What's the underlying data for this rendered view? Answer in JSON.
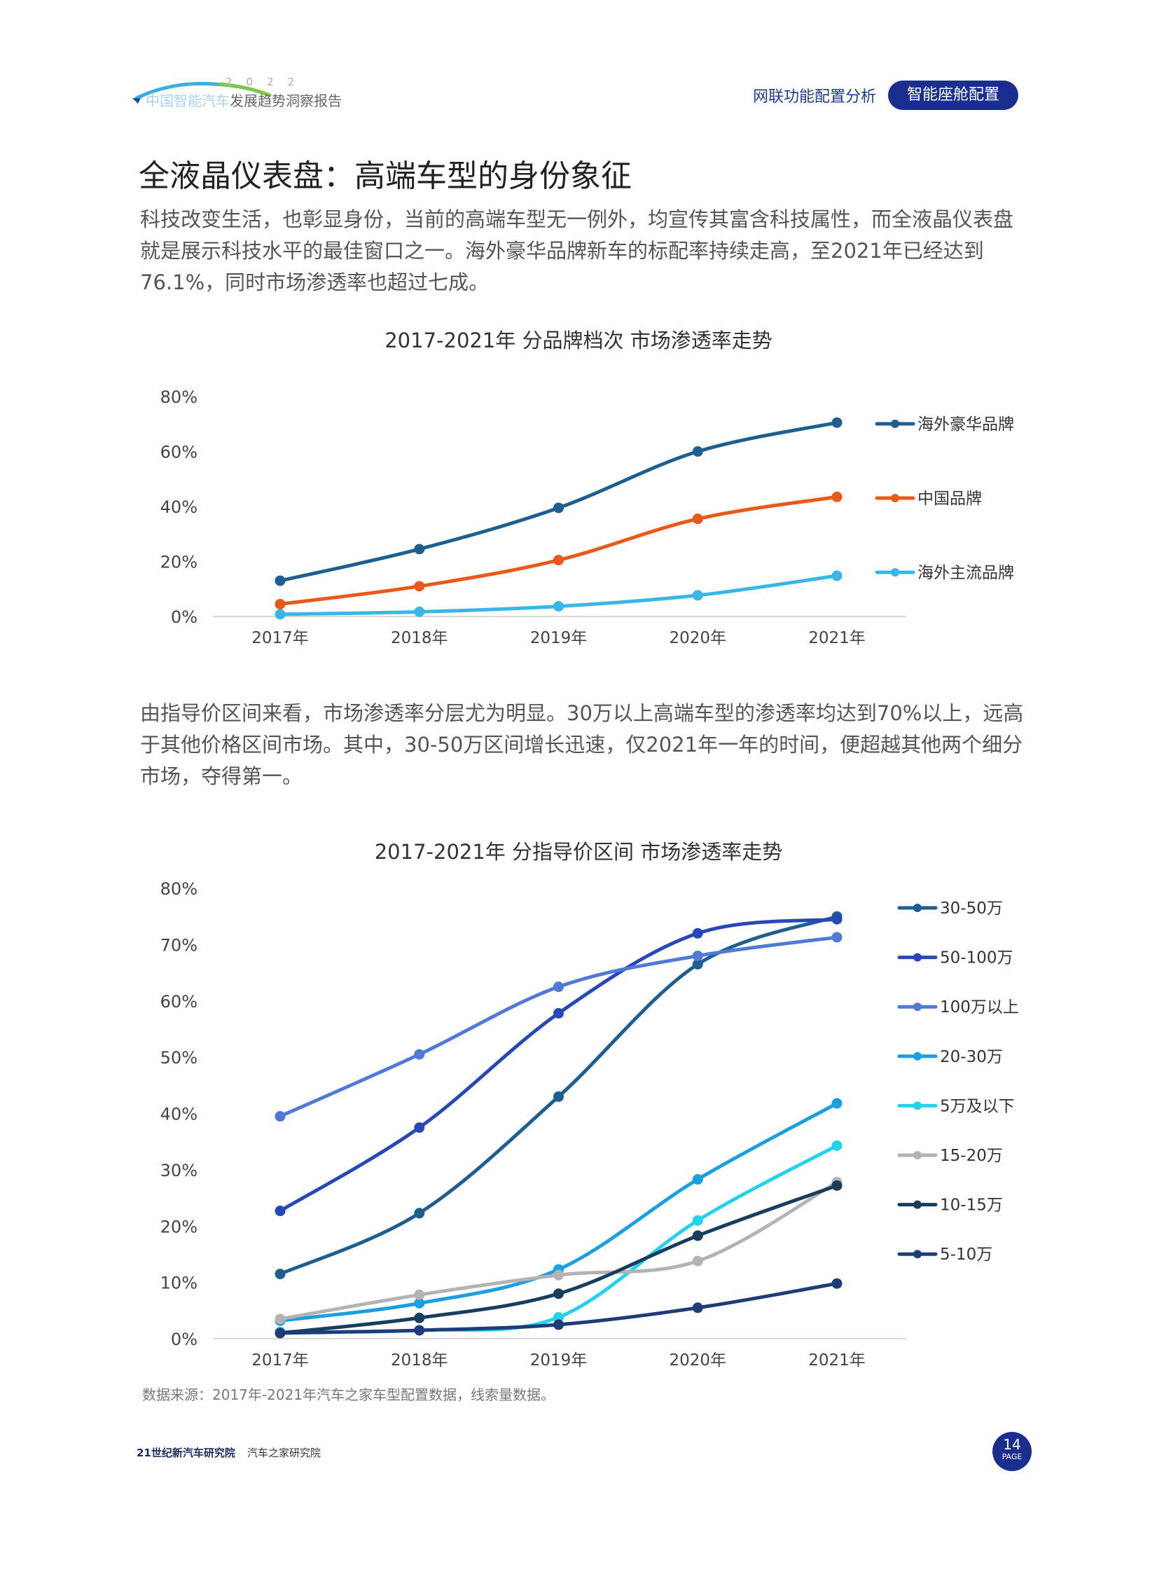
{
  "header": {
    "logo_year": "2022",
    "logo_light": "中国智能汽车",
    "logo_dark": "发展趋势洞察报告",
    "nav_link": "网联功能配置分析",
    "nav_active": "智能座舱配置"
  },
  "page_title": "全液晶仪表盘：高端车型的身份象征",
  "para1": "科技改变生活，也彰显身份，当前的高端车型无一例外，均宣传其富含科技属性，而全液晶仪表盘就是展示科技水平的最佳窗口之一。海外豪华品牌新车的标配率持续走高，至2021年已经达到76.1%，同时市场渗透率也超过七成。",
  "para2": "由指导价区间来看，市场渗透率分层尤为明显。30万以上高端车型的渗透率均达到70%以上，远高于其他价格区间市场。其中，30-50万区间增长迅速，仅2021年一年的时间，便超越其他两个细分市场，夺得第一。",
  "chart_data": [
    {
      "type": "line",
      "title": "2017-2021年 分品牌档次 市场渗透率走势",
      "categories": [
        "2017年",
        "2018年",
        "2019年",
        "2020年",
        "2021年"
      ],
      "ylim": [
        0,
        80
      ],
      "yticks": [
        "0%",
        "20%",
        "40%",
        "60%",
        "80%"
      ],
      "legend_position": "right",
      "series": [
        {
          "name": "海外豪华品牌",
          "color": "#1f5f8f",
          "values": [
            13,
            24.5,
            39.5,
            60,
            70.5
          ]
        },
        {
          "name": "中国品牌",
          "color": "#e8591b",
          "values": [
            4.5,
            11,
            20.5,
            35.5,
            43.5
          ]
        },
        {
          "name": "海外主流品牌",
          "color": "#38b6e6",
          "values": [
            0.8,
            1.7,
            3.7,
            7.7,
            14.8
          ]
        }
      ]
    },
    {
      "type": "line",
      "title": "2017-2021年 分指导价区间 市场渗透率走势",
      "categories": [
        "2017年",
        "2018年",
        "2019年",
        "2020年",
        "2021年"
      ],
      "ylim": [
        0,
        80
      ],
      "yticks": [
        "0%",
        "10%",
        "20%",
        "30%",
        "40%",
        "50%",
        "60%",
        "70%",
        "80%"
      ],
      "legend_position": "right",
      "series": [
        {
          "name": "30-50万",
          "color": "#1f5f8f",
          "values": [
            11.5,
            22.3,
            43,
            66.5,
            75
          ]
        },
        {
          "name": "50-100万",
          "color": "#2748b8",
          "values": [
            22.7,
            37.5,
            57.8,
            72,
            74.5
          ]
        },
        {
          "name": "100万以上",
          "color": "#4f7ad6",
          "values": [
            39.5,
            50.5,
            62.5,
            68,
            71.3
          ]
        },
        {
          "name": "20-30万",
          "color": "#1a9fe0",
          "values": [
            3.2,
            6.3,
            12.3,
            28.3,
            41.8
          ]
        },
        {
          "name": "5万及以下",
          "color": "#25d2ee",
          "values": [
            1.2,
            1.5,
            3.8,
            21,
            34.3
          ]
        },
        {
          "name": "15-20万",
          "color": "#b3b3b3",
          "values": [
            3.5,
            7.8,
            11.3,
            13.8,
            27.8
          ]
        },
        {
          "name": "10-15万",
          "color": "#173e5c",
          "values": [
            1,
            3.7,
            8,
            18.3,
            27.2
          ]
        },
        {
          "name": "5-10万",
          "color": "#1e3c78",
          "values": [
            1,
            1.5,
            2.5,
            5.5,
            9.8
          ]
        }
      ]
    }
  ],
  "source_note": "数据来源：2017年-2021年汽车之家车型配置数据，线索量数据。",
  "footer": {
    "logo1": "21世纪新汽车研究院",
    "logo2": "汽车之家研究院"
  },
  "page_number": "14",
  "page_label": "PAGE"
}
